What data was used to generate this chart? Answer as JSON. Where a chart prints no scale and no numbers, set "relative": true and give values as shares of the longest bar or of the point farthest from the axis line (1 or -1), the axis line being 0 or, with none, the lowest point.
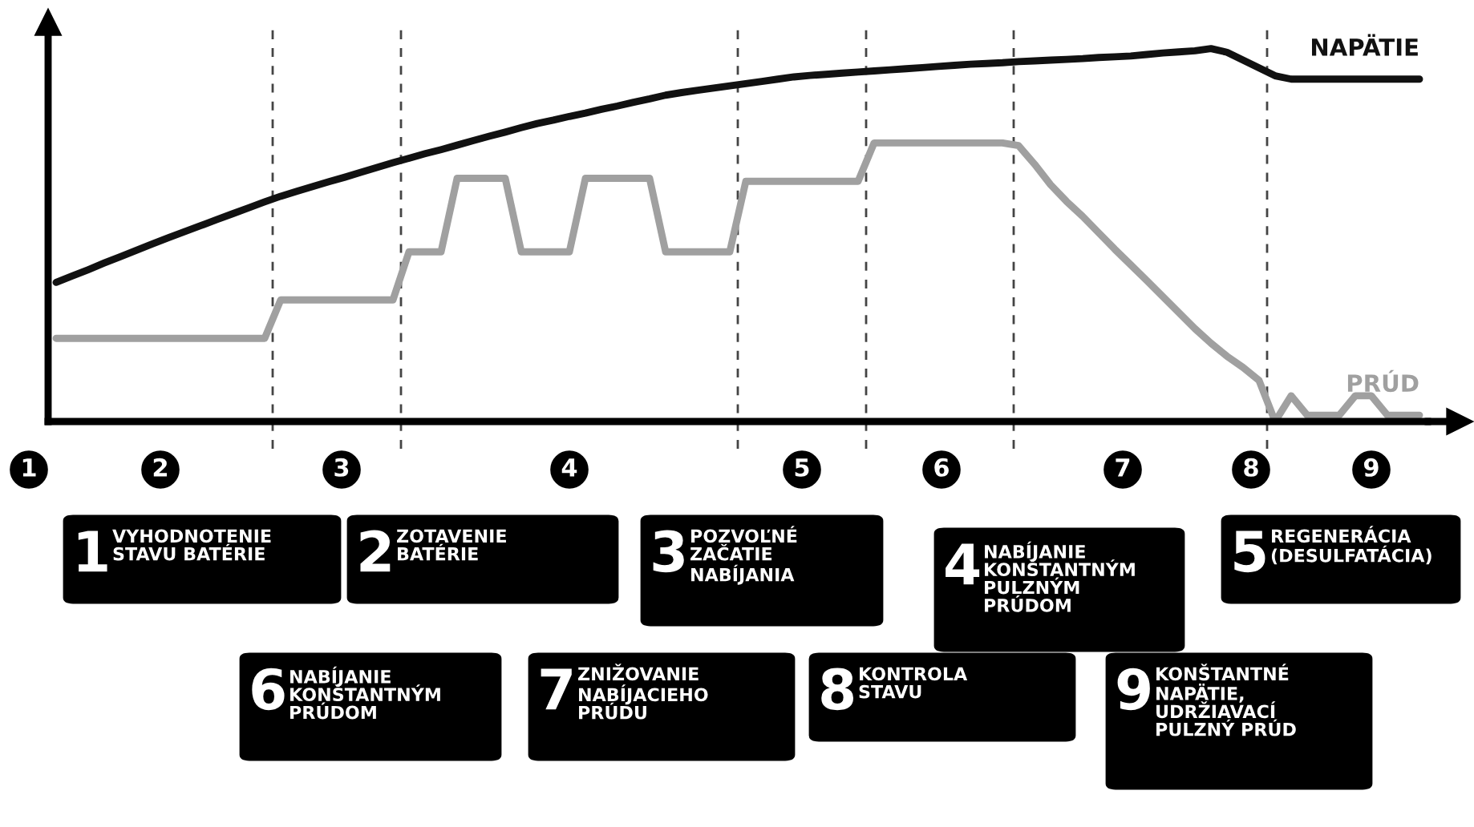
{
  "chart_data": {
    "type": "line",
    "relative": true,
    "grid": false,
    "legend": false,
    "categories": [
      null,
      null,
      null,
      null,
      null,
      null,
      null,
      null,
      null,
      null,
      null,
      null,
      null,
      null,
      null,
      null,
      null,
      null,
      null,
      null,
      null,
      null,
      null,
      null,
      null,
      null,
      null,
      null,
      null,
      null,
      null,
      null,
      null,
      null,
      null,
      null,
      null,
      null,
      null,
      null,
      null,
      null,
      null,
      null,
      null,
      null,
      null,
      null,
      null,
      null,
      null,
      null,
      null,
      null,
      null,
      null,
      null,
      null,
      null,
      null,
      null,
      null,
      null,
      null,
      null,
      null,
      null,
      null,
      null,
      null,
      null,
      null,
      null,
      null,
      null,
      null,
      null,
      null,
      null,
      null,
      null,
      null,
      null,
      null,
      null,
      null
    ],
    "series": [
      {
        "name": "NAPÄTIE",
        "color": "#111111",
        "values": [
          0.373,
          0.39,
          0.407,
          0.425,
          0.442,
          0.459,
          0.476,
          0.493,
          0.509,
          0.525,
          0.541,
          0.557,
          0.573,
          0.589,
          0.604,
          0.617,
          0.63,
          0.643,
          0.655,
          0.668,
          0.681,
          0.694,
          0.706,
          0.718,
          0.729,
          0.741,
          0.753,
          0.765,
          0.776,
          0.788,
          0.799,
          0.808,
          0.818,
          0.827,
          0.837,
          0.846,
          0.856,
          0.865,
          0.875,
          0.882,
          0.888,
          0.894,
          0.9,
          0.906,
          0.912,
          0.918,
          0.924,
          0.928,
          0.931,
          0.934,
          0.937,
          0.94,
          0.943,
          0.946,
          0.949,
          0.952,
          0.955,
          0.958,
          0.96,
          0.962,
          0.965,
          0.967,
          0.969,
          0.971,
          0.973,
          0.976,
          0.978,
          0.98,
          0.984,
          0.988,
          0.991,
          0.994,
          1.0,
          0.99,
          0.969,
          0.948,
          0.927,
          0.918,
          0.918,
          0.918,
          0.918,
          0.918,
          0.918,
          0.918,
          0.918,
          0.918
        ]
      },
      {
        "name": "PRÚD",
        "color": "#a0a0a0",
        "values": [
          0.223,
          0.223,
          0.223,
          0.223,
          0.223,
          0.223,
          0.223,
          0.223,
          0.223,
          0.223,
          0.223,
          0.223,
          0.223,
          0.223,
          0.326,
          0.326,
          0.326,
          0.326,
          0.326,
          0.326,
          0.326,
          0.326,
          0.455,
          0.455,
          0.455,
          0.652,
          0.652,
          0.652,
          0.652,
          0.455,
          0.455,
          0.455,
          0.455,
          0.652,
          0.652,
          0.652,
          0.652,
          0.652,
          0.455,
          0.455,
          0.455,
          0.455,
          0.455,
          0.644,
          0.644,
          0.644,
          0.644,
          0.644,
          0.644,
          0.644,
          0.644,
          0.747,
          0.747,
          0.747,
          0.747,
          0.747,
          0.747,
          0.747,
          0.747,
          0.747,
          0.74,
          0.69,
          0.635,
          0.59,
          0.55,
          0.506,
          0.462,
          0.42,
          0.378,
          0.335,
          0.292,
          0.249,
          0.21,
          0.175,
          0.145,
          0.11,
          0,
          0.069,
          0.017,
          0.017,
          0.017,
          0.069,
          0.069,
          0.017,
          0.017,
          0.017
        ]
      }
    ],
    "annotations": [
      "1",
      "2",
      "3",
      "4",
      "5",
      "6",
      "7",
      "8",
      "9",
      "1\nVYHODNOTENIE\nSTAVU BATÉRIE",
      "2\nZOTAVENIE\nBATÉRIE",
      "3\nPOZVOĽNÉ\nZAČATIE\nNABÍJANIA",
      "4\nNABÍJANIE\nKONŠTANTNÝM\nPULZNÝM\nPRÚDOM",
      "5\nREGENERÁCIA\n(DESULFATÁCIA)",
      "6\nNABÍJANIE\nKONŠTANTNÝM\nPRÚDOM",
      "7\nZNIŽOVANIE\nNABÍJACIEHO\nPRÚDU",
      "8\nKONTROLA\nSTAVU",
      "9\nKONŠTANTNÉ\nNAPÄTIE,\nUDRŽIAVACÍ\nPULZNÝ PRÚD"
    ]
  }
}
